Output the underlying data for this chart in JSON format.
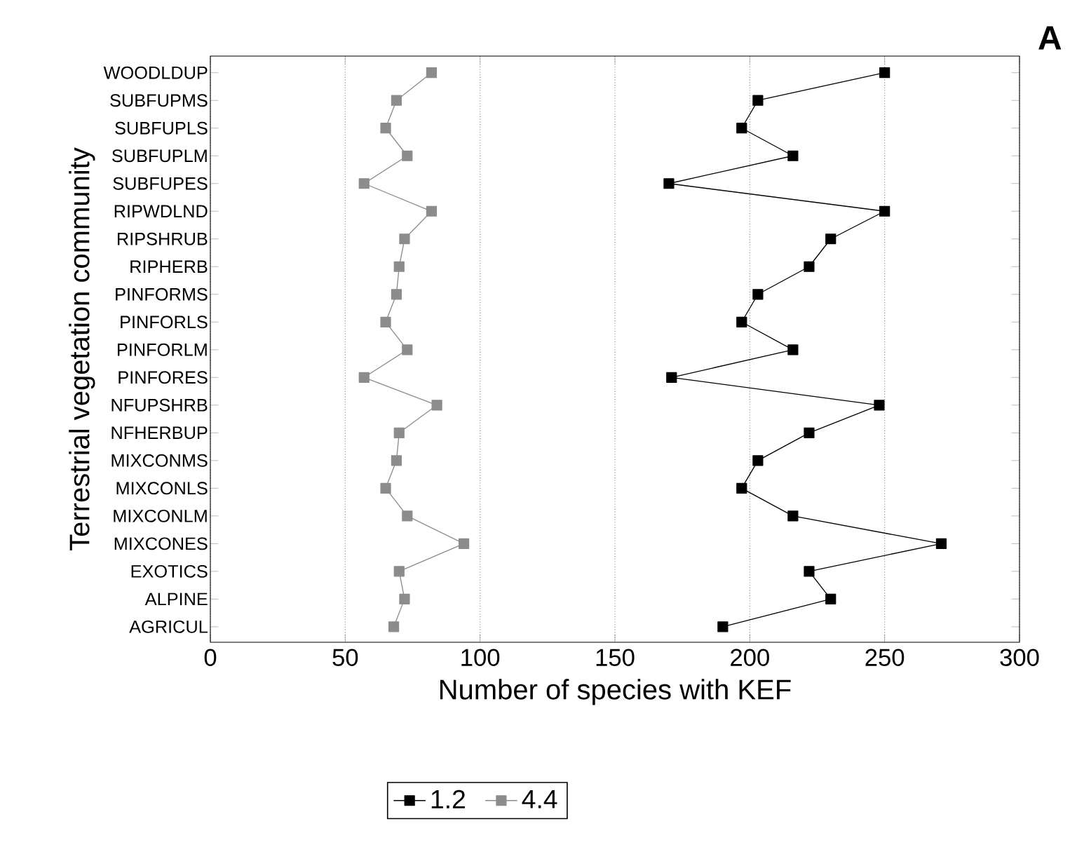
{
  "chart_data": {
    "type": "line",
    "annotations": [
      "A"
    ],
    "xlabel": "Number of species with KEF",
    "ylabel": "Terrestrial vegetation community",
    "categories": [
      "WOODLDUP",
      "SUBFUPMS",
      "SUBFUPLS",
      "SUBFUPLM",
      "SUBFUPES",
      "RIPWDLND",
      "RIPSHRUB",
      "RIPHERB",
      "PINFORMS",
      "PINFORLS",
      "PINFORLM",
      "PINFORES",
      "NFUPSHRB",
      "NFHERBUP",
      "MIXCONMS",
      "MIXCONLS",
      "MIXCONLM",
      "MIXCONES",
      "EXOTICS",
      "ALPINE",
      "AGRICUL"
    ],
    "orientation": "horizontal",
    "series": [
      {
        "name": "1.2",
        "color": "#000000",
        "values": [
          250,
          203,
          197,
          216,
          170,
          250,
          230,
          222,
          203,
          197,
          216,
          171,
          248,
          222,
          203,
          197,
          216,
          271,
          222,
          230,
          190
        ]
      },
      {
        "name": "4.4",
        "color": "#8c8c8c",
        "values": [
          82,
          69,
          65,
          73,
          57,
          82,
          72,
          70,
          69,
          65,
          73,
          57,
          84,
          70,
          69,
          65,
          73,
          94,
          70,
          72,
          68
        ]
      }
    ],
    "xlim": [
      0,
      300
    ],
    "xticks": [
      0,
      50,
      100,
      150,
      200,
      250,
      300
    ],
    "grid": "x",
    "legend": "bottom",
    "marker": "square",
    "line_style": "solid"
  }
}
